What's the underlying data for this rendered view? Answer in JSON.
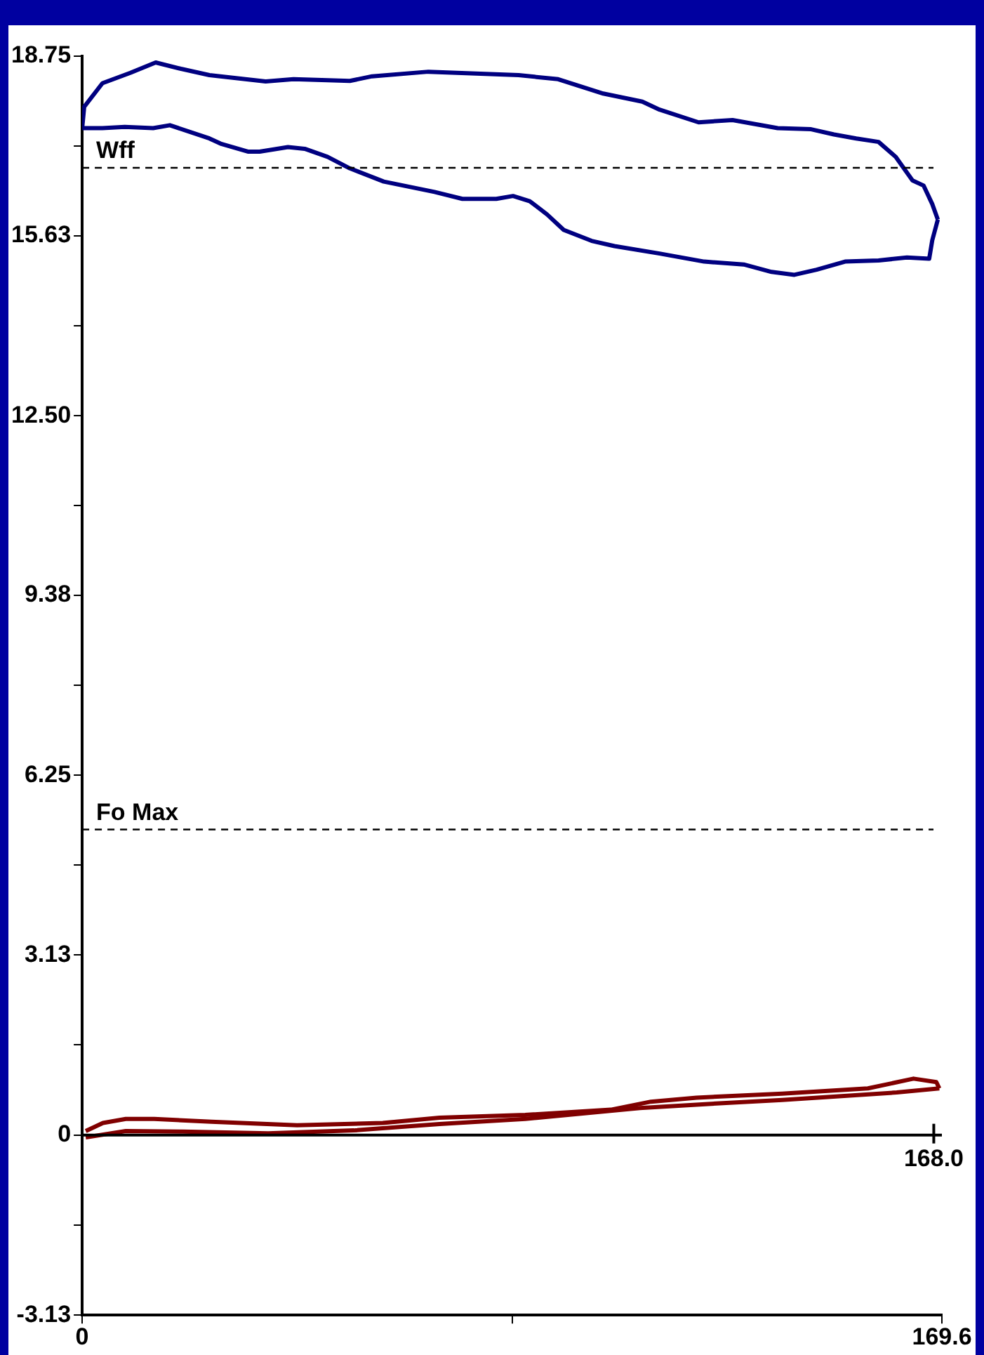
{
  "chart_data": {
    "type": "line",
    "xlim": [
      0,
      169.6
    ],
    "xticks": [
      0,
      {
        "value": 84.8,
        "label": null
      },
      169.6
    ],
    "ylim": [
      -3.13,
      18.75
    ],
    "yticks": [
      -3.13,
      {
        "value": -1.565,
        "label": null
      },
      0,
      {
        "value": 1.565,
        "label": null
      },
      3.13,
      {
        "value": 4.69,
        "label": null
      },
      6.25,
      {
        "value": 7.815,
        "label": null
      },
      9.38,
      {
        "value": 10.94,
        "label": null
      },
      {
        "value": 12.5,
        "label": "12.50"
      },
      {
        "value": 14.065,
        "label": null
      },
      15.63,
      {
        "value": 17.19,
        "label": null
      },
      18.75
    ],
    "grid": false,
    "legend": false,
    "marker": "none",
    "line_style": "solid",
    "annotations": [
      {
        "text": "168.0",
        "x": 168.0,
        "y": 0
      }
    ],
    "series": [
      {
        "color": "#000080",
        "x": [
          0,
          0.4,
          4.0,
          9.5,
          14.5,
          19.5,
          25.1,
          36.2,
          41.7,
          52.8,
          57.2,
          68.3,
          86.1,
          93.9,
          102.8,
          110.5,
          113.9,
          121.6,
          128.3,
          137.2,
          143.8,
          148.3,
          152.7,
          157.1,
          160.5,
          163.8,
          166.0,
          167.7,
          168.8
        ],
        "values": [
          17.5,
          17.87,
          18.28,
          18.46,
          18.64,
          18.53,
          18.42,
          18.31,
          18.35,
          18.32,
          18.4,
          18.48,
          18.42,
          18.35,
          18.1,
          17.96,
          17.82,
          17.6,
          17.64,
          17.5,
          17.48,
          17.39,
          17.32,
          17.26,
          17.0,
          16.59,
          16.5,
          16.18,
          15.91
        ]
      },
      {
        "color": "#000080",
        "x": [
          0,
          4.0,
          8.4,
          14.0,
          17.3,
          25.1,
          27.3,
          32.8,
          35.0,
          40.6,
          43.9,
          48.4,
          52.8,
          59.5,
          69.5,
          75.0,
          81.7,
          85.0,
          88.3,
          91.7,
          95.0,
          100.5,
          105.0,
          113.9,
          122.7,
          130.5,
          136.0,
          140.5,
          144.9,
          150.5,
          157.1,
          162.7,
          167.1,
          167.7,
          168.8
        ],
        "values": [
          17.5,
          17.5,
          17.52,
          17.5,
          17.55,
          17.32,
          17.23,
          17.09,
          17.09,
          17.17,
          17.14,
          17.0,
          16.8,
          16.57,
          16.39,
          16.27,
          16.27,
          16.32,
          16.23,
          16.0,
          15.73,
          15.54,
          15.45,
          15.32,
          15.18,
          15.13,
          15.0,
          14.95,
          15.04,
          15.18,
          15.2,
          15.25,
          15.23,
          15.55,
          15.91
        ]
      },
      {
        "color": "#800000",
        "x": [
          0.7,
          4.1,
          8.6,
          14.2,
          25.5,
          42.4,
          59.3,
          70.5,
          87.4,
          104.3,
          112.2,
          121.2,
          138.1,
          155.0,
          164.0,
          168.5,
          169.1
        ],
        "values": [
          0.07,
          0.21,
          0.28,
          0.28,
          0.23,
          0.17,
          0.21,
          0.3,
          0.35,
          0.44,
          0.58,
          0.65,
          0.72,
          0.81,
          0.98,
          0.92,
          0.81
        ]
      },
      {
        "color": "#800000",
        "x": [
          0.7,
          8.6,
          19.8,
          36.7,
          53.6,
          70.5,
          87.4,
          110.0,
          123.5,
          138.1,
          160.7,
          169.1
        ],
        "values": [
          -0.04,
          0.07,
          0.06,
          0.03,
          0.08,
          0.19,
          0.28,
          0.47,
          0.54,
          0.61,
          0.74,
          0.81
        ]
      }
    ],
    "ref_lines": [
      {
        "axis": "y",
        "value": 16.81,
        "label": "Wff",
        "color": "#000000",
        "line_style": "dashed"
      },
      {
        "axis": "y",
        "value": 5.31,
        "label": "Fo Max",
        "color": "#000000",
        "line_style": "dashed"
      },
      {
        "axis": "y",
        "value": 0,
        "color": "#000000",
        "line_style": "solid"
      }
    ]
  }
}
